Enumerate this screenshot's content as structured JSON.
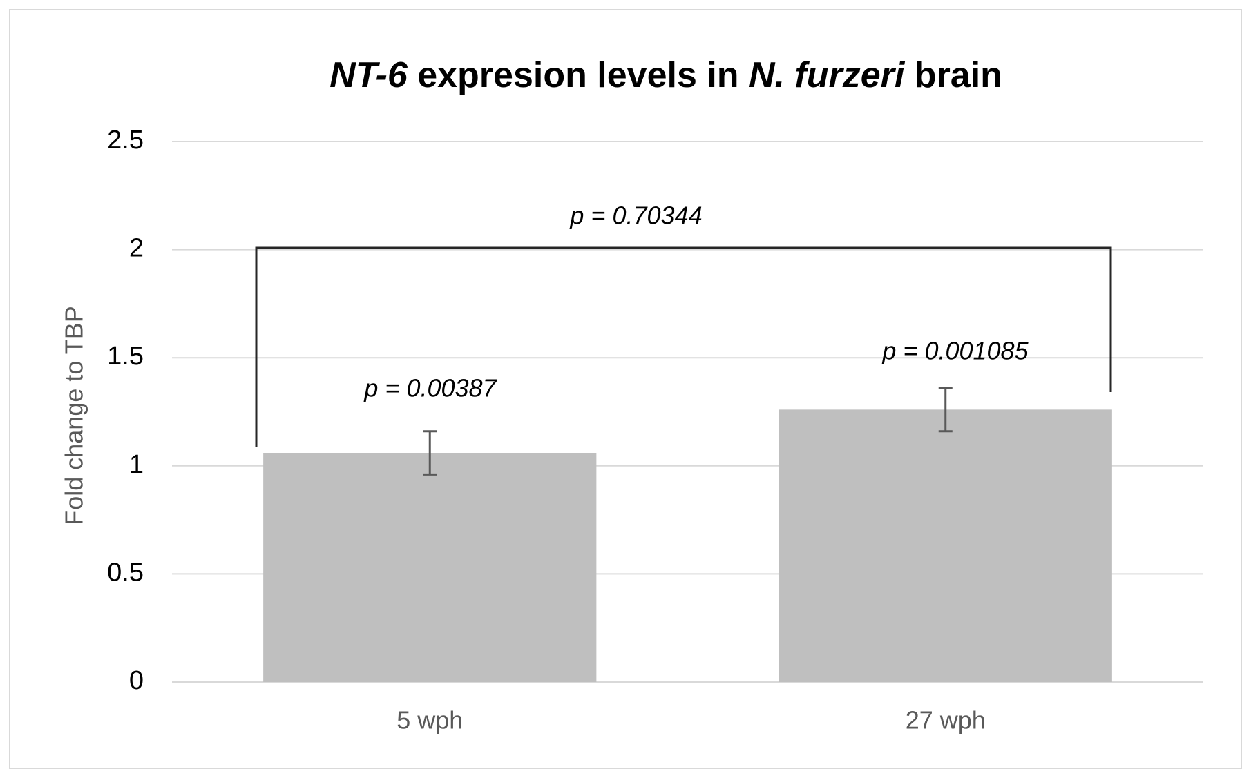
{
  "chart_data": {
    "type": "bar",
    "title": [
      {
        "text": "NT-6",
        "italic": true
      },
      {
        "text": " expresion levels in ",
        "italic": false
      },
      {
        "text": "N. furzeri",
        "italic": true
      },
      {
        "text": " brain",
        "italic": false
      }
    ],
    "y_label": "Fold change to TBP",
    "categories": [
      "5 wph",
      "27 wph"
    ],
    "values": [
      1.06,
      1.26
    ],
    "errors": [
      0.1,
      0.1
    ],
    "color": "#bfbfbf",
    "error_color": "#595959",
    "ylim": [
      0,
      2.5
    ],
    "yticks": [
      0,
      0.5,
      1,
      1.5,
      2,
      2.5
    ],
    "grid": true,
    "annotations": [
      "p = 0.70344",
      "p = 0.00387",
      "p = 0.001085"
    ]
  }
}
